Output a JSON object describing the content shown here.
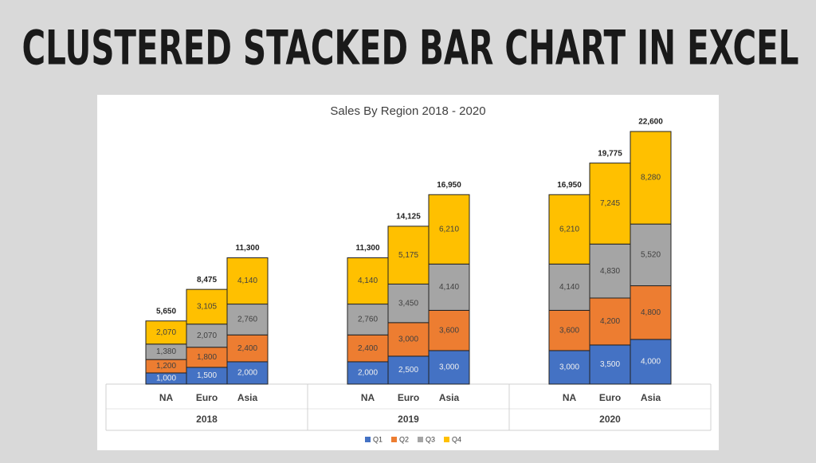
{
  "heading": "CLUSTERED STACKED BAR CHART IN EXCEL",
  "chart_data": {
    "type": "stacked-bar",
    "title": "Sales By Region 2018 - 2020",
    "groups": [
      {
        "name": "2018",
        "categories": [
          "NA",
          "Euro",
          "Asia"
        ]
      },
      {
        "name": "2019",
        "categories": [
          "NA",
          "Euro",
          "Asia"
        ]
      },
      {
        "name": "2020",
        "categories": [
          "NA",
          "Euro",
          "Asia"
        ]
      }
    ],
    "series": [
      {
        "name": "Q1",
        "color": "#4472c4",
        "values": [
          1000,
          1500,
          2000,
          2000,
          2500,
          3000,
          3000,
          3500,
          4000
        ],
        "value_labels": [
          "1,000",
          "1,500",
          "2,000",
          "2,000",
          "2,500",
          "3,000",
          "3,000",
          "3,500",
          "4,000"
        ]
      },
      {
        "name": "Q2",
        "color": "#ed7d31",
        "values": [
          1200,
          1800,
          2400,
          2400,
          3000,
          3600,
          3600,
          4200,
          4800
        ],
        "value_labels": [
          "1,200",
          "1,800",
          "2,400",
          "2,400",
          "3,000",
          "3,600",
          "3,600",
          "4,200",
          "4,800"
        ]
      },
      {
        "name": "Q3",
        "color": "#a5a5a5",
        "values": [
          1380,
          2070,
          2760,
          2760,
          3450,
          4140,
          4140,
          4830,
          5520
        ],
        "value_labels": [
          "1,380",
          "2,070",
          "2,760",
          "2,760",
          "3,450",
          "4,140",
          "4,140",
          "4,830",
          "5,520"
        ]
      },
      {
        "name": "Q4",
        "color": "#ffc000",
        "values": [
          2070,
          3105,
          4140,
          4140,
          5175,
          6210,
          6210,
          7245,
          8280
        ],
        "value_labels": [
          "2,070",
          "3,105",
          "4,140",
          "4,140",
          "5,175",
          "6,210",
          "6,210",
          "7,245",
          "8,280"
        ]
      }
    ],
    "totals": [
      5650,
      8475,
      11300,
      11300,
      14125,
      16950,
      16950,
      19775,
      22600
    ],
    "total_labels": [
      "5,650",
      "8,475",
      "11,300",
      "11,300",
      "14,125",
      "16,950",
      "16,950",
      "19,775",
      "22,600"
    ],
    "legend": "bottom"
  }
}
